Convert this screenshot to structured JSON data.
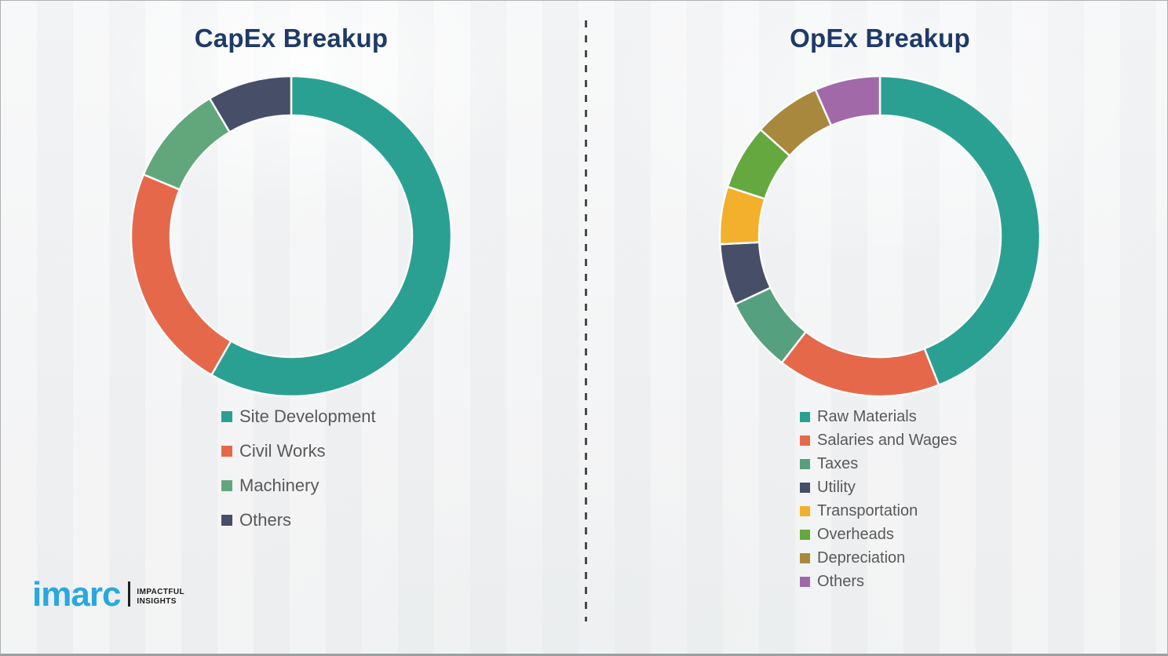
{
  "theme": {
    "title_color": "#1f3a68",
    "legend_text_color": "#595959",
    "divider_color": "#4a4a4a",
    "background_color": "#f2f3f4",
    "segment_gap_color": "#fbfcfc"
  },
  "chart_data": [
    {
      "type": "pie",
      "variant": "donut",
      "title": "CapEx Breakup",
      "labels": [
        "Site Development",
        "Civil Works",
        "Machinery",
        "Others"
      ],
      "values": [
        58.3,
        23.0,
        10.2,
        8.5
      ],
      "unit": "percent-of-whole",
      "colors": [
        "#2aa092",
        "#e5684a",
        "#61a77b",
        "#474e68"
      ],
      "start_angle_deg": 0,
      "direction": "clockwise",
      "inner_radius_ratio": 0.755,
      "data_labels": "none",
      "legend_position": "below-left"
    },
    {
      "type": "pie",
      "variant": "donut",
      "title": "OpEx Breakup",
      "labels": [
        "Raw Materials",
        "Salaries and Wages",
        "Taxes",
        "Utility",
        "Transportation",
        "Overheads",
        "Depreciation",
        "Others"
      ],
      "values": [
        44.0,
        16.5,
        7.5,
        6.2,
        5.8,
        6.6,
        6.8,
        6.6
      ],
      "unit": "percent-of-whole",
      "colors": [
        "#2aa092",
        "#e5684a",
        "#55a07e",
        "#474e68",
        "#f2b02c",
        "#64a83f",
        "#a8883c",
        "#a169a8"
      ],
      "start_angle_deg": 0,
      "direction": "clockwise",
      "inner_radius_ratio": 0.755,
      "data_labels": "none",
      "legend_position": "below-left"
    }
  ],
  "logo": {
    "wordmark": "imarc",
    "wordmark_color": "#29a8e0",
    "tagline_line1": "IMPACTFUL",
    "tagline_line2": "INSIGHTS"
  }
}
